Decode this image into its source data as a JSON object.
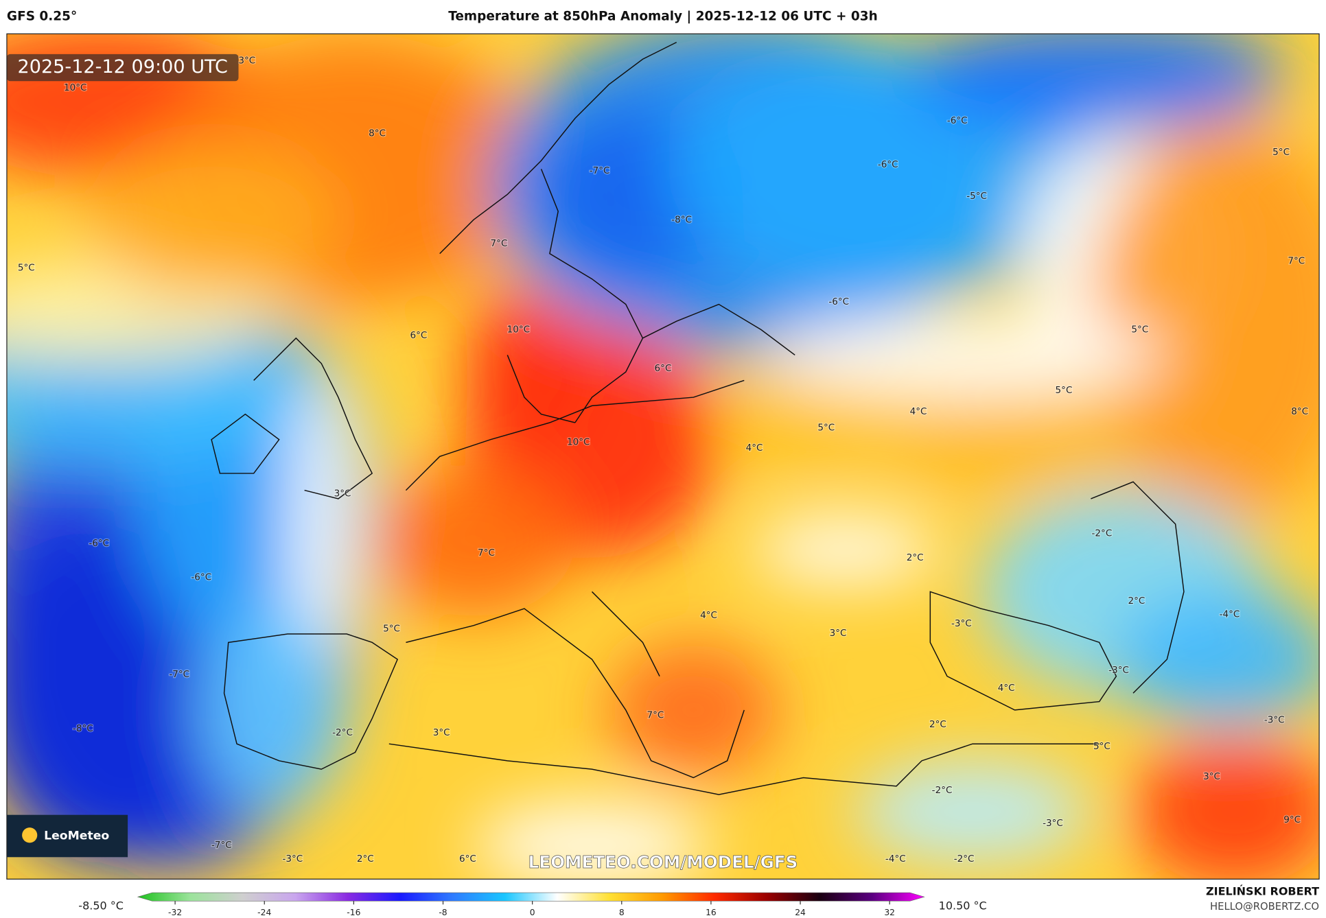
{
  "header": {
    "model": "GFS 0.25°",
    "title": "Temperature at 850hPa Anomaly | 2025-12-12 06 UTC + 03h"
  },
  "map": {
    "timestamp": "2025-12-12 09:00 UTC",
    "watermark": "LEOMETEO.COM/MODEL/GFS",
    "logo": "LeoMeteo",
    "labels": [
      "3°C",
      "10°C",
      "8°C",
      "-6°C",
      "-6°C",
      "-7°C",
      "-5°C",
      "5°C",
      "-8°C",
      "7°C",
      "5°C",
      "7°C",
      "-6°C",
      "10°C",
      "5°C",
      "6°C",
      "6°C",
      "5°C",
      "4°C",
      "8°C",
      "5°C",
      "10°C",
      "4°C",
      "3°C",
      "-2°C",
      "-6°C",
      "2°C",
      "7°C",
      "-6°C",
      "2°C",
      "4°C",
      "-4°C",
      "-3°C",
      "5°C",
      "3°C",
      "-3°C",
      "-7°C",
      "4°C",
      "7°C",
      "-3°C",
      "2°C",
      "-8°C",
      "-2°C",
      "3°C",
      "5°C",
      "3°C",
      "-2°C",
      "-3°C",
      "9°C",
      "-7°C",
      "-3°C",
      "2°C",
      "6°C",
      "-4°C",
      "-2°C"
    ]
  },
  "colorbar": {
    "min_label": "-8.50 °C",
    "max_label": "10.50 °C",
    "ticks": [
      -32,
      -24,
      -16,
      -8,
      0,
      8,
      16,
      24,
      32
    ],
    "colors": [
      "#1fc21f",
      "#9be39b",
      "#cfcfcf",
      "#c9a6ee",
      "#8a2be2",
      "#1a1aff",
      "#2f7bff",
      "#19c6ff",
      "#ffffff",
      "#ffe033",
      "#ff9a00",
      "#ff2a00",
      "#9a0000",
      "#1a0010",
      "#5a0080",
      "#ff00ff"
    ]
  },
  "footer": {
    "author": "ZIELIŃSKI ROBERT",
    "email": "HELLO@ROBERTZ.CO"
  }
}
